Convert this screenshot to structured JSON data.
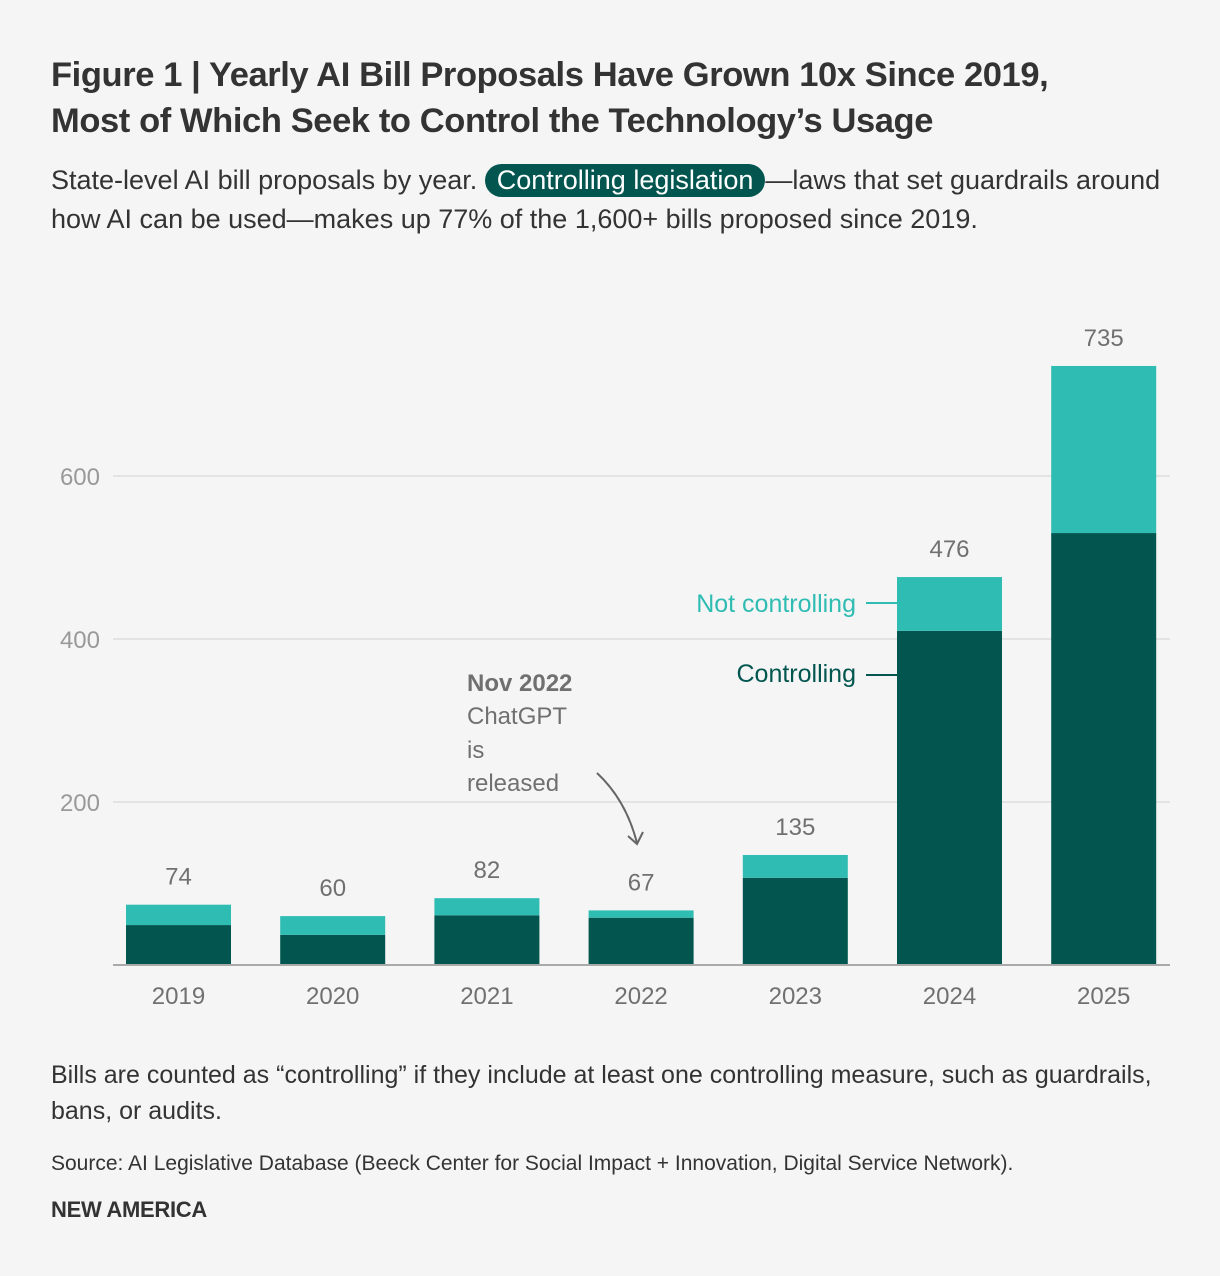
{
  "header": {
    "title_line1": "Figure 1 | Yearly AI Bill Proposals Have Grown 10x Since 2019,",
    "title_line2": "Most of Which Seek to Control the Technology’s Usage",
    "subtitle_before": "State-level AI bill proposals by year.",
    "subtitle_highlight": "Controlling legislation",
    "subtitle_after": "—laws that set guardrails around how AI can be used—makes up 77% of the 1,600+ bills proposed since 2019."
  },
  "colors": {
    "controlling": "#02564f",
    "not_controlling": "#2fbcb2",
    "text": "#333333",
    "axis_text": "#999999",
    "label_text": "#707070",
    "grid": "#dddddd",
    "baseline": "#aaaaaa"
  },
  "chart_data": {
    "type": "bar",
    "stacked": true,
    "title": "Figure 1 | Yearly AI Bill Proposals Have Grown 10x Since 2019, Most of Which Seek to Control the Technology’s Usage",
    "xlabel": "",
    "ylabel": "",
    "categories": [
      "2019",
      "2020",
      "2021",
      "2022",
      "2023",
      "2024",
      "2025"
    ],
    "series": [
      {
        "name": "Controlling",
        "values": [
          49,
          37,
          61,
          58,
          107,
          410,
          530
        ]
      },
      {
        "name": "Not controlling",
        "values": [
          25,
          23,
          21,
          9,
          28,
          66,
          205
        ]
      }
    ],
    "totals": [
      74,
      60,
      82,
      67,
      135,
      476,
      735
    ],
    "total_labels": [
      "74",
      "60",
      "82",
      "67",
      "135",
      "476",
      "735"
    ],
    "ylim": [
      0,
      735
    ],
    "yticks": [
      200,
      400,
      600
    ],
    "ytick_labels": [
      "200",
      "400",
      "600"
    ],
    "grid": true,
    "legend": {
      "placement": "inline-left-of-2024",
      "not_controlling_label": "Not controlling",
      "controlling_label": "Controlling"
    },
    "annotation": {
      "category": "2022",
      "heading": "Nov 2022",
      "lines": [
        "ChatGPT",
        "is",
        "released"
      ]
    }
  },
  "footer": {
    "note": "Bills are counted as “controlling” if they include at least one controlling measure, such as guardrails, bans, or audits.",
    "source": "Source: AI Legislative Database (Beeck Center for Social Impact + Innovation, Digital Service Network).",
    "brand": "NEW AMERICA"
  }
}
